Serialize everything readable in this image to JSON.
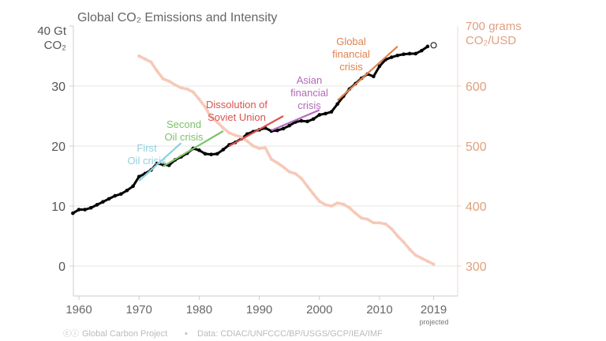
{
  "chart_data": {
    "type": "line",
    "title": "Global CO₂ Emissions and Intensity",
    "ylabel_left": [
      "40 Gt",
      "CO₂"
    ],
    "ylabel_right": [
      "700 grams",
      "CO₂/USD"
    ],
    "xlim": [
      1959,
      2021
    ],
    "ylim_left": [
      0,
      40
    ],
    "ylim_right": [
      300,
      700
    ],
    "x_ticks": [
      "1960",
      "1970",
      "1980",
      "1990",
      "2000",
      "2010",
      "2019"
    ],
    "x_tick_values": [
      1960,
      1970,
      1980,
      1990,
      2000,
      2010,
      2019
    ],
    "x_tick_note": "projected",
    "y_ticks_left": [
      "0",
      "10",
      "20",
      "30"
    ],
    "y_ticks_left_values": [
      0,
      10,
      20,
      30
    ],
    "y_ticks_right": [
      "300",
      "400",
      "500",
      "600"
    ],
    "y_ticks_right_values": [
      300,
      400,
      500,
      600
    ],
    "grid": true,
    "series": [
      {
        "role": "emissions",
        "color": "#000000",
        "axis": "left",
        "x": [
          1959,
          1960,
          1961,
          1962,
          1963,
          1964,
          1965,
          1966,
          1967,
          1968,
          1969,
          1970,
          1971,
          1972,
          1973,
          1974,
          1975,
          1976,
          1977,
          1978,
          1979,
          1980,
          1981,
          1982,
          1983,
          1984,
          1985,
          1986,
          1987,
          1988,
          1989,
          1990,
          1991,
          1992,
          1993,
          1994,
          1995,
          1996,
          1997,
          1998,
          1999,
          2000,
          2001,
          2002,
          2003,
          2004,
          2005,
          2006,
          2007,
          2008,
          2009,
          2010,
          2011,
          2012,
          2013,
          2014,
          2015,
          2016,
          2017,
          2018
        ],
        "values": [
          8.8,
          9.4,
          9.4,
          9.7,
          10.2,
          10.7,
          11.2,
          11.7,
          12.0,
          12.6,
          13.3,
          14.9,
          15.4,
          16.0,
          17.1,
          16.9,
          16.8,
          17.7,
          18.2,
          18.8,
          19.6,
          19.3,
          18.7,
          18.6,
          18.7,
          19.4,
          20.2,
          20.6,
          21.2,
          22.0,
          22.4,
          22.7,
          23.0,
          22.5,
          22.6,
          22.9,
          23.4,
          24.0,
          24.2,
          24.1,
          24.5,
          25.2,
          25.4,
          25.7,
          27.0,
          28.3,
          29.5,
          30.4,
          31.3,
          32.0,
          31.6,
          33.3,
          34.4,
          34.8,
          35.1,
          35.3,
          35.4,
          35.4,
          35.9,
          36.6
        ]
      },
      {
        "role": "projection",
        "color": "#000000",
        "axis": "left",
        "x": [
          2019
        ],
        "values": [
          36.8
        ],
        "marker": "open-circle"
      },
      {
        "role": "intensity",
        "color": "#f6c9b8",
        "axis": "right",
        "x": [
          1970,
          1971,
          1972,
          1973,
          1974,
          1975,
          1976,
          1977,
          1978,
          1979,
          1980,
          1981,
          1982,
          1983,
          1984,
          1985,
          1986,
          1987,
          1988,
          1989,
          1990,
          1991,
          1992,
          1993,
          1994,
          1995,
          1996,
          1997,
          1998,
          1999,
          2000,
          2001,
          2002,
          2003,
          2004,
          2005,
          2006,
          2007,
          2008,
          2009,
          2010,
          2011,
          2012,
          2013,
          2014,
          2015,
          2016,
          2017,
          2018,
          2019
        ],
        "values": [
          650,
          645,
          640,
          625,
          612,
          608,
          602,
          597,
          595,
          590,
          578,
          565,
          548,
          540,
          530,
          522,
          518,
          515,
          508,
          500,
          496,
          497,
          478,
          472,
          465,
          457,
          454,
          446,
          433,
          420,
          408,
          402,
          400,
          405,
          403,
          397,
          388,
          380,
          378,
          372,
          372,
          370,
          362,
          350,
          340,
          328,
          318,
          313,
          308,
          303
        ]
      }
    ],
    "annotations": [
      {
        "label": [
          "First",
          "Oil crisis"
        ],
        "color": "#8fd0e0",
        "x": [
          1970,
          1977
        ],
        "values": [
          14.2,
          20.5
        ]
      },
      {
        "label": [
          "Second",
          "Oil crisis"
        ],
        "color": "#7cc26a",
        "x": [
          1974,
          1984
        ],
        "values": [
          16.6,
          22.5
        ]
      },
      {
        "label": [
          "Dissolution of",
          "Soviet Union"
        ],
        "color": "#d9534f",
        "x": [
          1985,
          1994
        ],
        "values": [
          20.0,
          25.0
        ]
      },
      {
        "label": [
          "Asian",
          "financial",
          "crisis"
        ],
        "color": "#b469b9",
        "x": [
          1992,
          2000
        ],
        "values": [
          22.6,
          26.0
        ]
      },
      {
        "label": [
          "Global",
          "financial",
          "crisis"
        ],
        "color": "#e0824e",
        "x": [
          2003,
          2013
        ],
        "values": [
          27.6,
          36.6
        ]
      }
    ],
    "colors": {
      "axis_right": "#e0a07e",
      "axis_left": "#555555",
      "grid": "#e6e6e6"
    }
  },
  "footer": {
    "credit": "Global Carbon Project",
    "separator": "•",
    "source": "Data: CDIAC/UNFCCC/BP/USGS/GCP/IEA/IMF"
  }
}
